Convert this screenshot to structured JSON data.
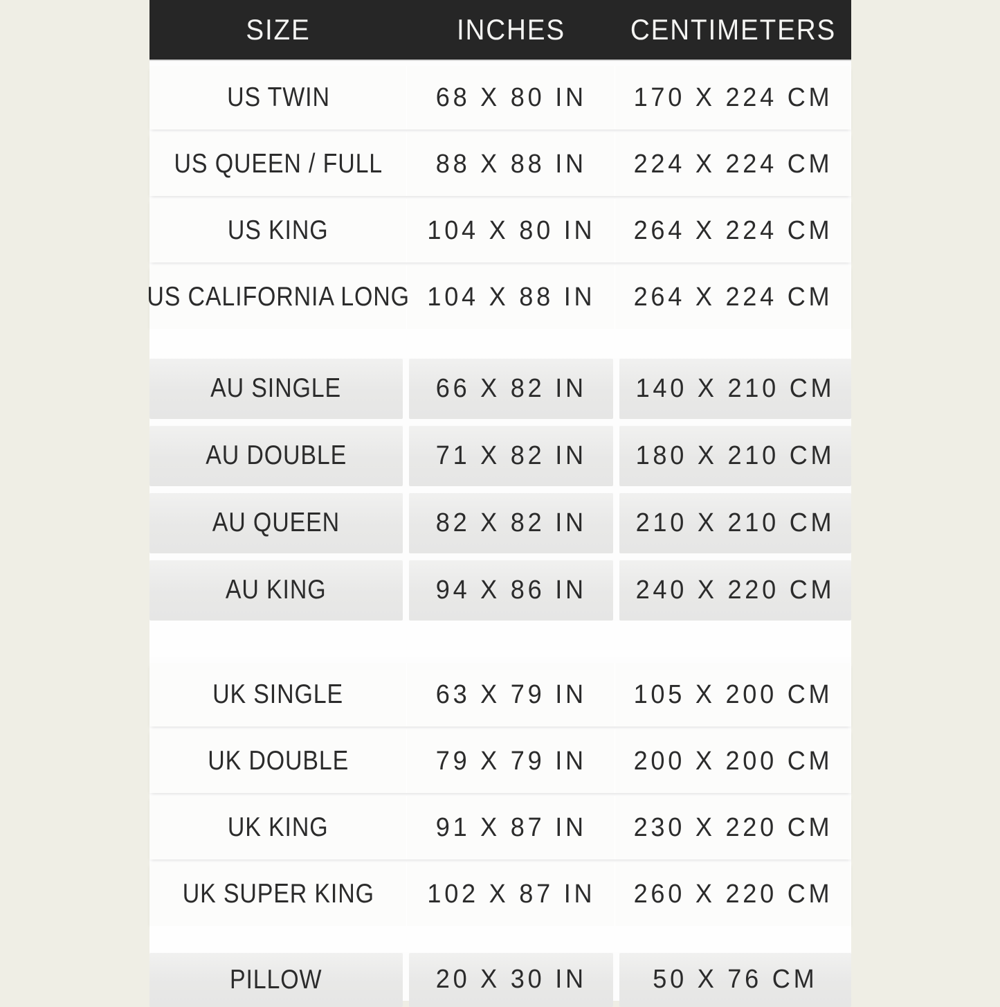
{
  "colors": {
    "page_background": "#efeee5",
    "panel_background": "#fdfdfd",
    "header_background": "#262626",
    "header_text": "#f4f4f2",
    "cell_text": "#2b2b2b",
    "gray_cell": "#e9e9e8",
    "white_cell": "#fcfcfb"
  },
  "header": {
    "size": "SIZE",
    "inches": "INCHES",
    "centimeters": "CENTIMETERS"
  },
  "groups": [
    {
      "id": "us",
      "rows": [
        {
          "size": "US TWIN",
          "inches": "68 X 80 IN",
          "cm": "170 X 224 CM"
        },
        {
          "size": "US QUEEN / FULL",
          "inches": "88 X 88 IN",
          "cm": "224 X 224 CM"
        },
        {
          "size": "US KING",
          "inches": "104 X 80 IN",
          "cm": "264 X 224 CM"
        },
        {
          "size": "US CALIFORNIA LONG",
          "inches": "104 X 88 IN",
          "cm": "264 X 224 CM"
        }
      ]
    },
    {
      "id": "au",
      "rows": [
        {
          "size": "AU SINGLE",
          "inches": "66 X 82 IN",
          "cm": "140 X 210 CM"
        },
        {
          "size": "AU DOUBLE",
          "inches": "71 X 82 IN",
          "cm": "180 X 210 CM"
        },
        {
          "size": "AU QUEEN",
          "inches": "82 X 82 IN",
          "cm": "210 X 210 CM"
        },
        {
          "size": "AU KING",
          "inches": "94 X 86 IN",
          "cm": "240 X 220 CM"
        }
      ]
    },
    {
      "id": "uk",
      "rows": [
        {
          "size": "UK SINGLE",
          "inches": "63 X 79 IN",
          "cm": "105 X 200 CM"
        },
        {
          "size": "UK DOUBLE",
          "inches": "79 X 79 IN",
          "cm": "200 X 200 CM"
        },
        {
          "size": "UK KING",
          "inches": "91 X 87 IN",
          "cm": "230 X 220 CM"
        },
        {
          "size": "UK SUPER KING",
          "inches": "102 X 87 IN",
          "cm": "260 X 220 CM"
        }
      ]
    },
    {
      "id": "pillow",
      "rows": [
        {
          "size": "PILLOW",
          "inches": "20 X 30 IN",
          "cm": "50 X 76 CM"
        }
      ]
    }
  ],
  "chart_data": {
    "type": "table",
    "columns": [
      "SIZE",
      "INCHES",
      "CENTIMETERS"
    ],
    "rows": [
      [
        "US TWIN",
        "68 X 80 IN",
        "170 X 224 CM"
      ],
      [
        "US QUEEN / FULL",
        "88 X 88 IN",
        "224 X 224 CM"
      ],
      [
        "US KING",
        "104 X 80 IN",
        "264 X 224 CM"
      ],
      [
        "US CALIFORNIA LONG",
        "104 X 88 IN",
        "264 X 224 CM"
      ],
      [
        "AU SINGLE",
        "66 X 82 IN",
        "140 X 210 CM"
      ],
      [
        "AU DOUBLE",
        "71 X 82 IN",
        "180 X 210 CM"
      ],
      [
        "AU QUEEN",
        "82 X 82 IN",
        "210 X 210 CM"
      ],
      [
        "AU KING",
        "94 X 86 IN",
        "240 X 220 CM"
      ],
      [
        "UK SINGLE",
        "63 X 79 IN",
        "105 X 200 CM"
      ],
      [
        "UK DOUBLE",
        "79 X 79 IN",
        "200 X 200 CM"
      ],
      [
        "UK KING",
        "91 X 87 IN",
        "230 X 220 CM"
      ],
      [
        "UK SUPER KING",
        "102 X 87 IN",
        "260 X 220 CM"
      ],
      [
        "PILLOW",
        "20 X 30 IN",
        "50 X 76 CM"
      ]
    ],
    "layout": "three-column size chart; groups US / AU / UK / PILLOW separated by white bands"
  }
}
